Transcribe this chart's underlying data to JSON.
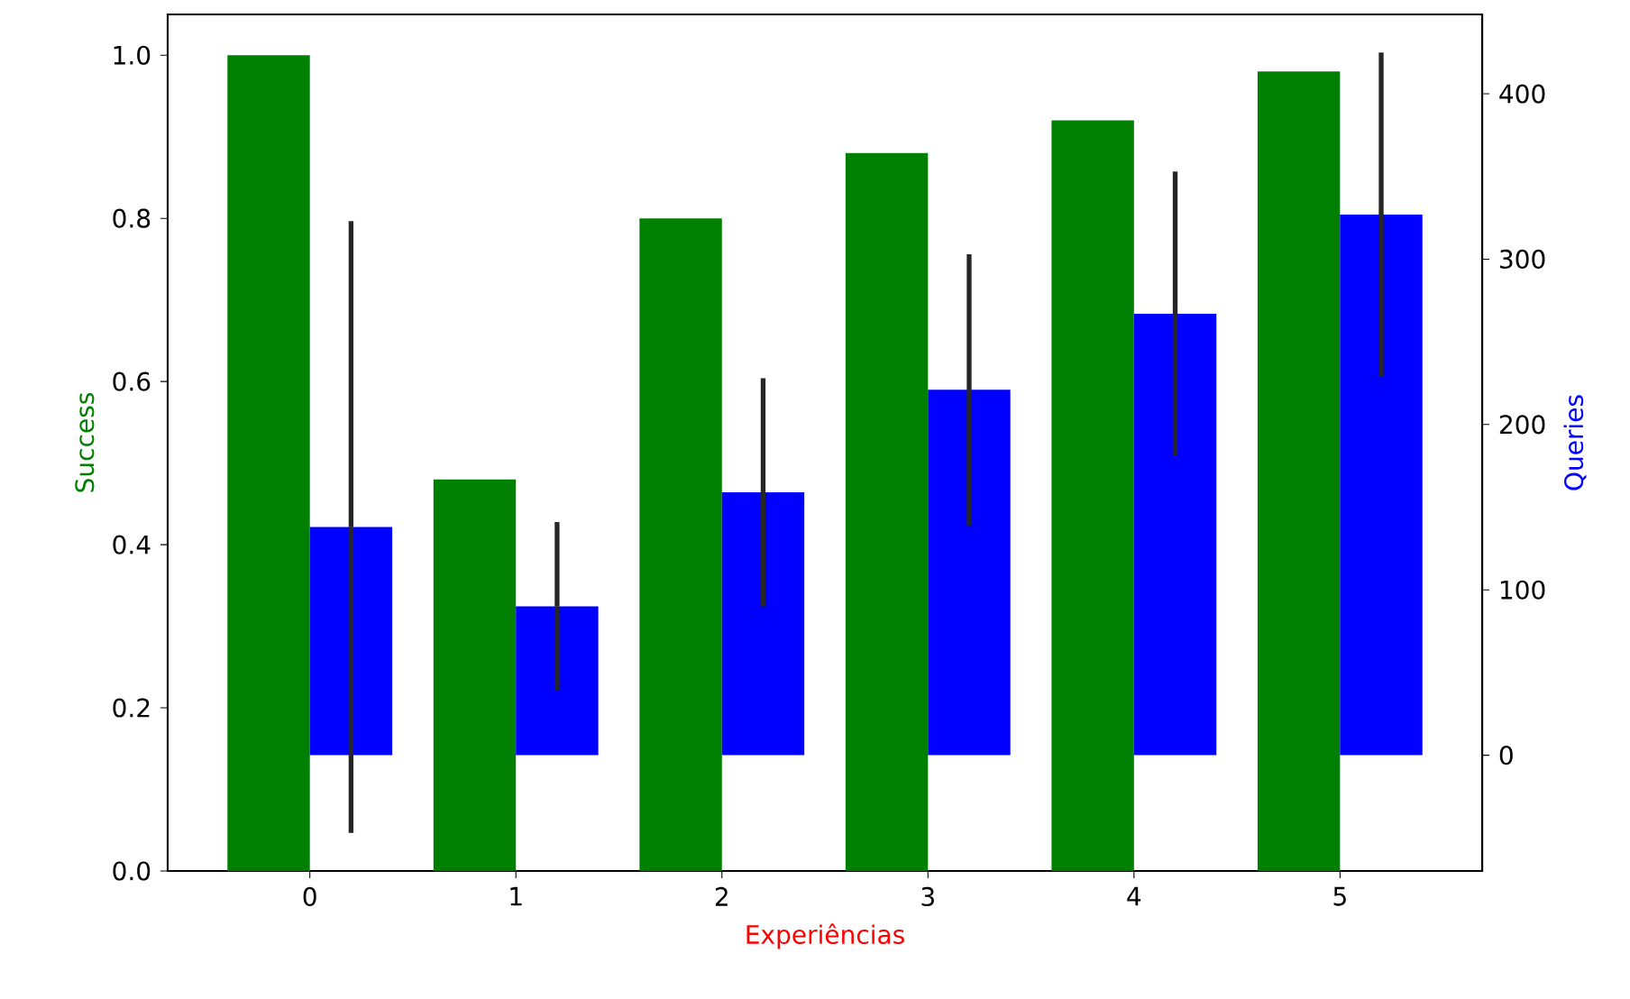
{
  "chart_data": {
    "type": "bar",
    "xlabel": "Experiências",
    "ylabel": "Success",
    "y2label": "Queries",
    "categories": [
      "0",
      "1",
      "2",
      "3",
      "4",
      "5"
    ],
    "series": [
      {
        "color": "#008000",
        "values": [
          1.0,
          0.48,
          0.8,
          0.88,
          0.92,
          0.98
        ]
      },
      {
        "color": "#0000ff",
        "axis": "y2",
        "values": [
          138,
          90,
          159,
          221,
          267,
          327
        ],
        "errors": [
          185,
          51,
          69,
          82,
          86,
          98
        ]
      }
    ],
    "ylim": [
      0,
      1.05
    ],
    "yticks": [
      {
        "value": 0,
        "label": "0.0"
      },
      {
        "value": 0.2,
        "label": "0.2"
      },
      {
        "value": 0.4,
        "label": "0.4"
      },
      {
        "value": 0.6,
        "label": "0.6"
      },
      {
        "value": 0.8,
        "label": "0.8"
      },
      {
        "value": 1.0,
        "label": "1.0"
      }
    ],
    "y2lim": [
      -70,
      448
    ],
    "y2ticks": [
      0,
      100,
      200,
      300,
      400
    ]
  }
}
